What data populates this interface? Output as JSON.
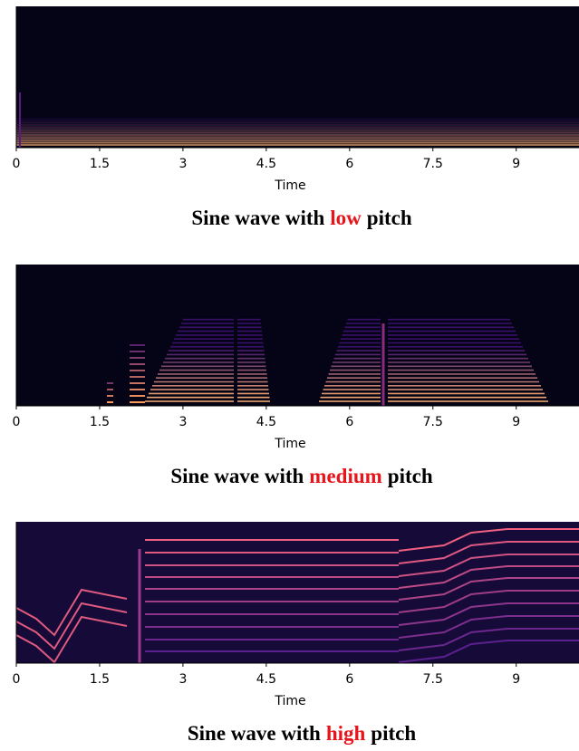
{
  "chart_data": [
    {
      "type": "spectrogram",
      "title": [
        "Sine wave with",
        "low",
        "pitch"
      ],
      "title_highlight_color": "#e8141c",
      "xlabel": "Time",
      "xlim": [
        0,
        10.13
      ],
      "xticks": [
        0,
        1.5,
        3,
        4.5,
        6,
        7.5,
        9
      ]
    },
    {
      "type": "spectrogram",
      "title": [
        "Sine wave with",
        "medium",
        "pitch"
      ],
      "title_highlight_color": "#e8141c",
      "xlabel": "Time",
      "xlim": [
        0,
        10.13
      ],
      "xticks": [
        0,
        1.5,
        3,
        4.5,
        6,
        7.5,
        9
      ]
    },
    {
      "type": "spectrogram",
      "title": [
        "Sine wave with",
        "high",
        "pitch"
      ],
      "title_highlight_color": "#e8141c",
      "xlabel": "Time",
      "xlim": [
        0,
        10.13
      ],
      "xticks": [
        0,
        1.5,
        3,
        4.5,
        6,
        7.5,
        9
      ]
    }
  ]
}
